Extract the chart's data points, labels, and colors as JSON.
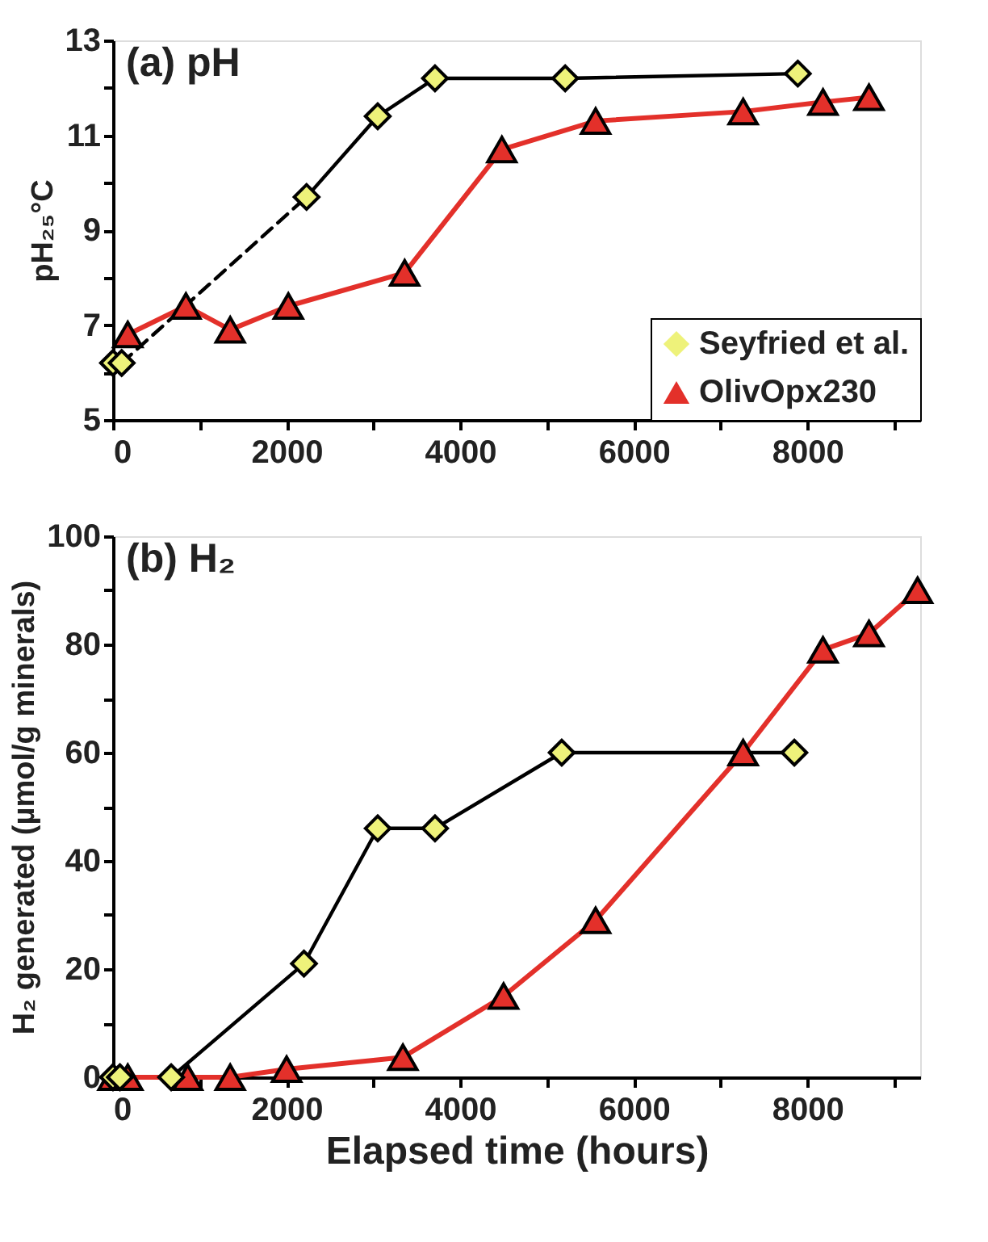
{
  "chart_data": [
    {
      "type": "line",
      "title": "(a) pH",
      "ylabel": "pH₂₅°C",
      "xlim": [
        0,
        9300
      ],
      "xticks": [
        0,
        {
          "value": 1000,
          "label": null
        },
        2000,
        {
          "value": 3000,
          "label": null
        },
        4000,
        {
          "value": 5000,
          "label": null
        },
        6000,
        {
          "value": 7000,
          "label": null
        },
        8000,
        {
          "value": 9000,
          "label": null
        }
      ],
      "ylim": [
        5,
        13
      ],
      "yticks": [
        5,
        {
          "value": 6,
          "label": null
        },
        7,
        {
          "value": 8,
          "label": null
        },
        9,
        {
          "value": 10,
          "label": null
        },
        11,
        {
          "value": 12,
          "label": null
        },
        13
      ],
      "grid": false,
      "legend": "bottom right",
      "series": [
        {
          "color": "#000000",
          "line_style": "dashed",
          "marker": "none",
          "x": [
            100,
            2230
          ],
          "values": [
            6.2,
            9.7
          ]
        },
        {
          "color": "#000000",
          "line_style": "solid",
          "marker": "none",
          "x": [
            2230,
            3050,
            3710,
            5210,
            7890
          ],
          "values": [
            9.7,
            11.4,
            12.2,
            12.2,
            12.3
          ]
        },
        {
          "name": "OlivOpx230",
          "color": "#e3302a",
          "line_style": "solid",
          "marker": "triangle",
          "x": [
            170,
            840,
            1350,
            2020,
            3360,
            4480,
            5560,
            7260,
            8180,
            8710
          ],
          "values": [
            6.8,
            7.4,
            6.9,
            7.4,
            8.1,
            10.7,
            11.3,
            11.5,
            11.7,
            11.8
          ]
        },
        {
          "type": "scatter",
          "name": "Seyfried et al.",
          "color": "#eef27a",
          "marker": "diamond",
          "x": [
            0,
            100,
            2230,
            3050,
            3710,
            5210,
            7890
          ],
          "values": [
            6.2,
            6.2,
            9.7,
            11.4,
            12.2,
            12.2,
            12.3
          ]
        }
      ]
    },
    {
      "type": "line",
      "title": "(b) H₂",
      "xlabel": "Elapsed time (hours)",
      "ylabel": "H₂ generated (µmol/g minerals)",
      "xlim": [
        0,
        9300
      ],
      "xticks": [
        0,
        {
          "value": 1000,
          "label": null
        },
        2000,
        {
          "value": 3000,
          "label": null
        },
        4000,
        {
          "value": 5000,
          "label": null
        },
        6000,
        {
          "value": 7000,
          "label": null
        },
        8000,
        {
          "value": 9000,
          "label": null
        }
      ],
      "ylim": [
        0,
        100
      ],
      "yticks": [
        0,
        {
          "value": 10,
          "label": null
        },
        20,
        {
          "value": 30,
          "label": null
        },
        40,
        {
          "value": 50,
          "label": null
        },
        60,
        {
          "value": 70,
          "label": null
        },
        80,
        {
          "value": 90,
          "label": null
        },
        100
      ],
      "grid": false,
      "legend": false,
      "series": [
        {
          "color": "#000000",
          "line_style": "solid",
          "marker": "none",
          "x": [
            0,
            80,
            670,
            2200,
            3050,
            3710,
            5170,
            7850
          ],
          "values": [
            0,
            0,
            0,
            21,
            46,
            46,
            60,
            60
          ]
        },
        {
          "color": "#e3302a",
          "line_style": "solid",
          "marker": "triangle",
          "x": [
            0,
            170,
            860,
            1350,
            2000,
            3340,
            4500,
            5560,
            7260,
            8180,
            8710,
            9270
          ],
          "values": [
            0,
            0,
            0,
            0,
            1.5,
            3.7,
            15,
            29,
            60,
            79,
            82,
            90
          ]
        },
        {
          "type": "scatter",
          "color": "#eef27a",
          "marker": "diamond",
          "x": [
            0,
            80,
            670,
            2200,
            3050,
            3710,
            5170,
            7850
          ],
          "values": [
            0,
            0,
            0,
            21,
            46,
            46,
            60,
            60
          ]
        }
      ]
    }
  ]
}
